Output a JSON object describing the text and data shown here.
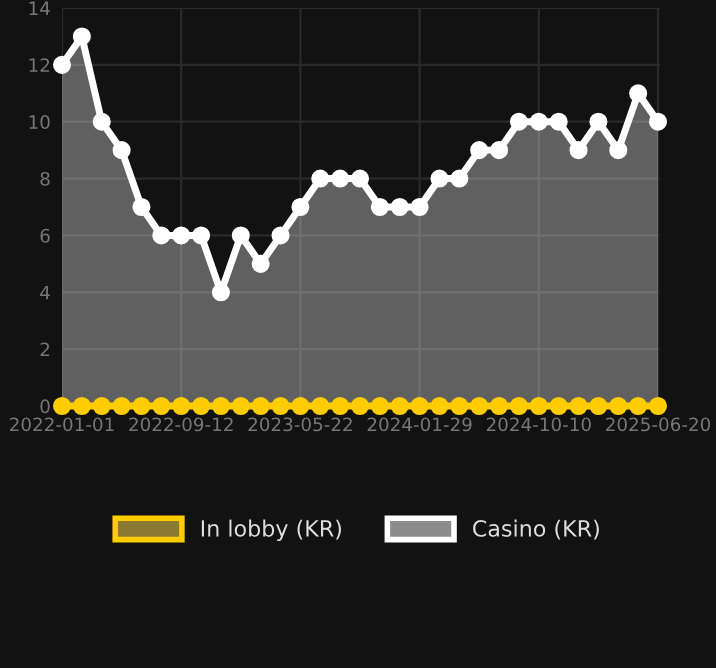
{
  "chart_data": {
    "type": "line",
    "categories": [
      "2022-01-01",
      null,
      null,
      null,
      null,
      null,
      "2022-09-12",
      null,
      null,
      null,
      null,
      null,
      "2023-05-22",
      null,
      null,
      null,
      null,
      null,
      "2024-01-29",
      null,
      null,
      null,
      null,
      null,
      "2024-10-10",
      null,
      null,
      null,
      null,
      null,
      "2025-06-20"
    ],
    "series": [
      {
        "name": "In lobby (KR)",
        "color": "#ffcc00",
        "values": [
          0,
          0,
          0,
          0,
          0,
          0,
          0,
          0,
          0,
          0,
          0,
          0,
          0,
          0,
          0,
          0,
          0,
          0,
          0,
          0,
          0,
          0,
          0,
          0,
          0,
          0,
          0,
          0,
          0,
          0,
          0
        ]
      },
      {
        "name": "Casino (KR)",
        "type": "area",
        "color": "#ffffff",
        "values": [
          12,
          13,
          10,
          9,
          7,
          6,
          6,
          6,
          4,
          6,
          5,
          6,
          7,
          8,
          8,
          8,
          7,
          7,
          7,
          8,
          8,
          9,
          9,
          10,
          10,
          10,
          9,
          10,
          9,
          11,
          10
        ]
      }
    ],
    "ylim": [
      0,
      14
    ],
    "yticks": [
      0,
      2,
      4,
      6,
      8,
      10,
      12,
      14
    ],
    "grid": true,
    "legend": "bottom",
    "marker": "circle"
  }
}
